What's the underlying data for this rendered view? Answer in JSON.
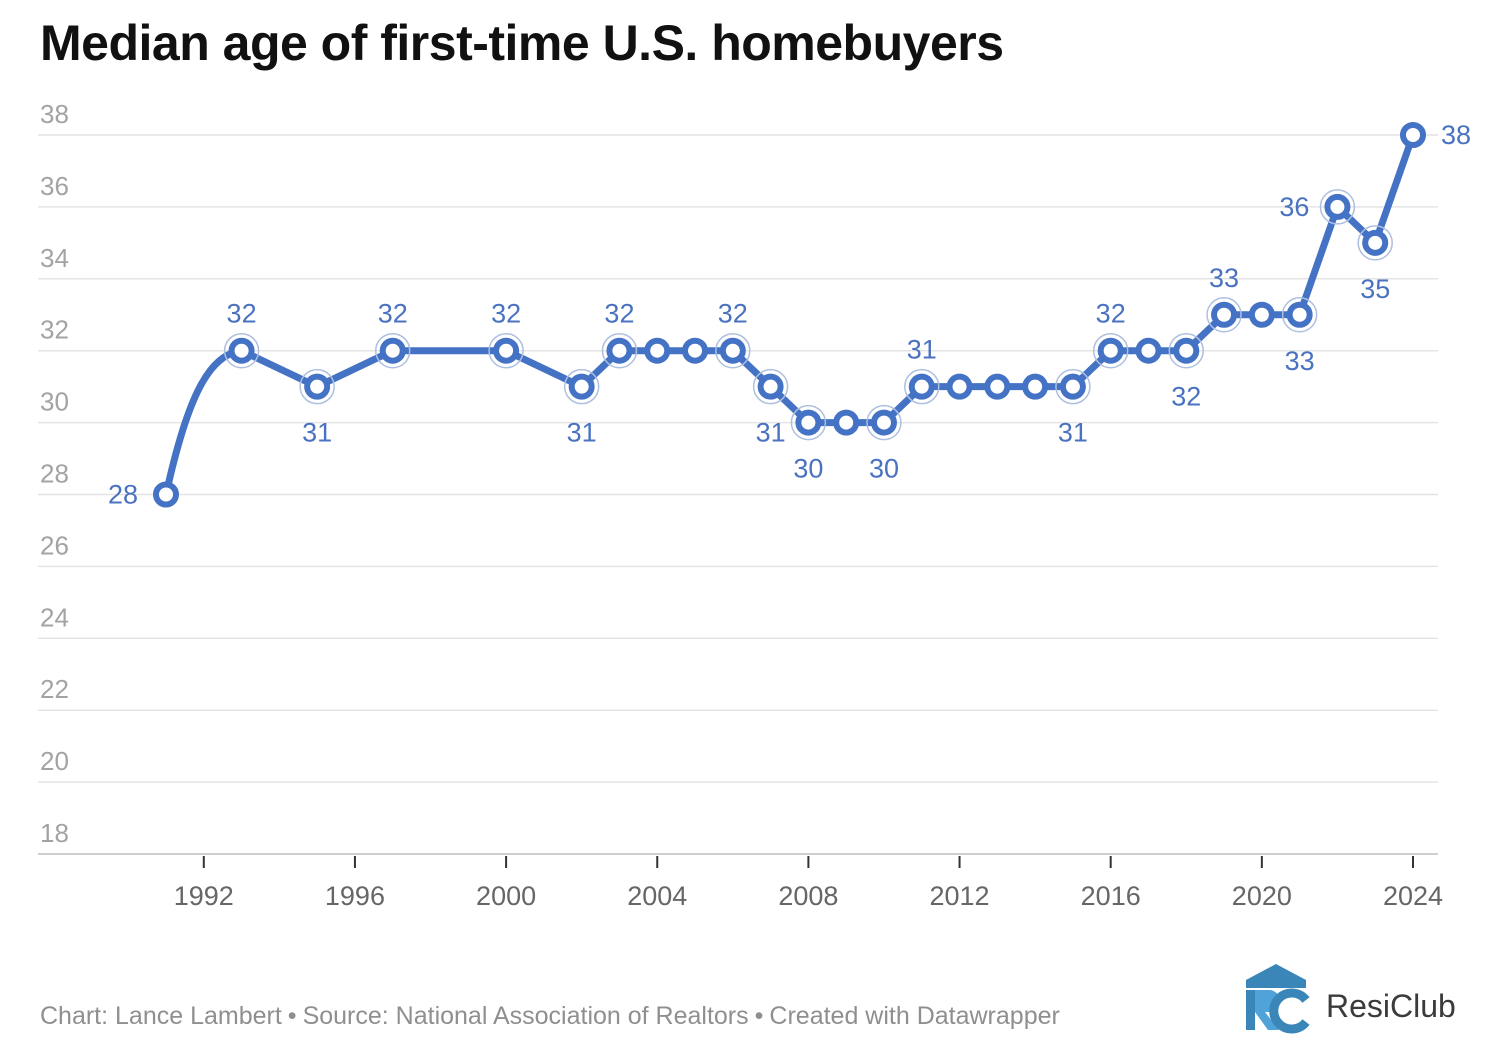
{
  "title": "Median age of first-time U.S. homebuyers",
  "footer": {
    "chart_by": "Chart: Lance Lambert",
    "source": "Source: National Association of Realtors",
    "created_with": "Created with Datawrapper",
    "separator": "•"
  },
  "brand": {
    "name": "ResiClub",
    "icon": "resiclub-logo-icon"
  },
  "colors": {
    "line": "#4472c4",
    "label": "#4a72c0",
    "grid": "#e4e4e4",
    "tick_label": "#a3a3a3",
    "x_label": "#666666"
  },
  "chart_data": {
    "type": "line",
    "title": "Median age of first-time U.S. homebuyers",
    "xlabel": "",
    "ylabel": "",
    "x": [
      1991,
      1993,
      1995,
      1997,
      2000,
      2002,
      2003,
      2004,
      2005,
      2006,
      2007,
      2008,
      2009,
      2010,
      2011,
      2012,
      2013,
      2014,
      2015,
      2016,
      2017,
      2018,
      2019,
      2020,
      2021,
      2022,
      2023,
      2024
    ],
    "series": [
      {
        "values": [
          28,
          32,
          31,
          32,
          32,
          31,
          32,
          32,
          32,
          32,
          31,
          30,
          30,
          30,
          31,
          31,
          31,
          31,
          31,
          32,
          32,
          32,
          33,
          33,
          33,
          36,
          35,
          38
        ]
      }
    ],
    "ylim": [
      18,
      38
    ],
    "yticks": [
      18,
      20,
      22,
      24,
      26,
      28,
      30,
      32,
      34,
      36,
      38
    ],
    "xticks": [
      1992,
      1996,
      2000,
      2004,
      2008,
      2012,
      2016,
      2020,
      2024
    ],
    "labeled_points": [
      {
        "x": 1991,
        "label": "28",
        "pos": "left"
      },
      {
        "x": 1993,
        "label": "32",
        "pos": "above"
      },
      {
        "x": 1995,
        "label": "31",
        "pos": "below"
      },
      {
        "x": 1997,
        "label": "32",
        "pos": "above"
      },
      {
        "x": 2000,
        "label": "32",
        "pos": "above"
      },
      {
        "x": 2002,
        "label": "31",
        "pos": "below"
      },
      {
        "x": 2003,
        "label": "32",
        "pos": "above"
      },
      {
        "x": 2006,
        "label": "32",
        "pos": "above"
      },
      {
        "x": 2007,
        "label": "31",
        "pos": "below"
      },
      {
        "x": 2008,
        "label": "30",
        "pos": "below"
      },
      {
        "x": 2010,
        "label": "30",
        "pos": "below"
      },
      {
        "x": 2011,
        "label": "31",
        "pos": "above"
      },
      {
        "x": 2015,
        "label": "31",
        "pos": "below"
      },
      {
        "x": 2016,
        "label": "32",
        "pos": "above"
      },
      {
        "x": 2018,
        "label": "32",
        "pos": "below"
      },
      {
        "x": 2019,
        "label": "33",
        "pos": "above"
      },
      {
        "x": 2021,
        "label": "33",
        "pos": "below"
      },
      {
        "x": 2022,
        "label": "36",
        "pos": "left"
      },
      {
        "x": 2023,
        "label": "35",
        "pos": "below"
      },
      {
        "x": 2024,
        "label": "38",
        "pos": "right"
      }
    ],
    "haloed_x": [
      1993,
      1995,
      1997,
      2000,
      2002,
      2003,
      2006,
      2007,
      2008,
      2010,
      2011,
      2015,
      2016,
      2018,
      2019,
      2021,
      2022,
      2023
    ],
    "grid": true,
    "legend": "none"
  }
}
